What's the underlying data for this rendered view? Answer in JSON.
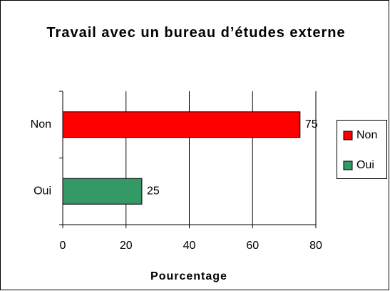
{
  "chart_data": {
    "type": "bar",
    "orientation": "horizontal",
    "title": "Travail avec un bureau d’études externe",
    "x_label": "Pourcentage",
    "categories": [
      "Non",
      "Oui"
    ],
    "values": [
      75,
      25
    ],
    "colors": [
      "#ff0000",
      "#339966"
    ],
    "xlim": [
      0,
      80
    ],
    "xticks": [
      0,
      20,
      40,
      60,
      80
    ],
    "grid": true,
    "legend": "right"
  }
}
